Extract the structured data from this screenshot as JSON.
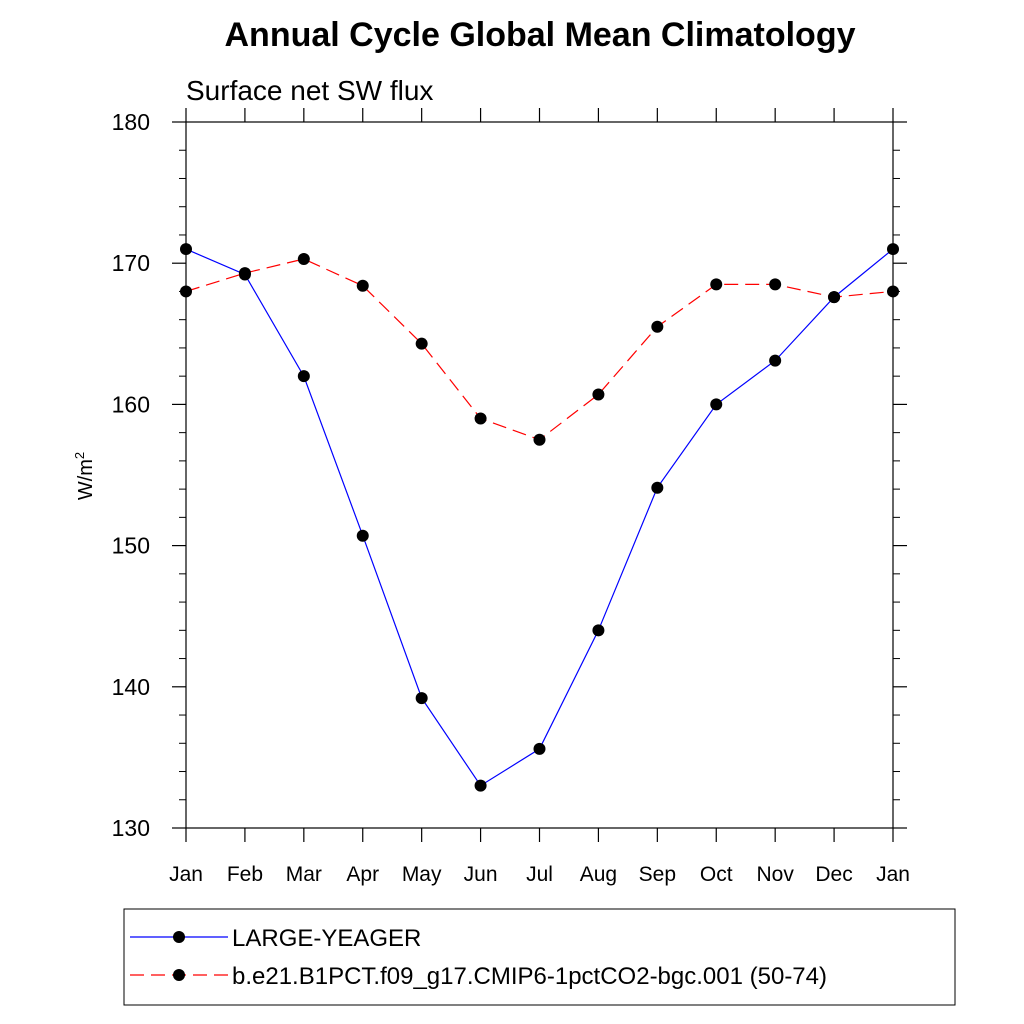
{
  "chart_data": {
    "type": "line",
    "title": "Annual Cycle Global Mean Climatology",
    "subtitle": "Surface net SW flux",
    "xlabel": "",
    "ylabel": "W/m",
    "ylabel_superscript": "2",
    "ylim": [
      130,
      180
    ],
    "yticks": [
      130,
      140,
      150,
      160,
      170,
      180
    ],
    "ytick_labels": [
      "130",
      "140",
      "150",
      "160",
      "170",
      "180"
    ],
    "categories": [
      "Jan",
      "Feb",
      "Mar",
      "Apr",
      "May",
      "Jun",
      "Jul",
      "Aug",
      "Sep",
      "Oct",
      "Nov",
      "Dec",
      "Jan"
    ],
    "grid": false,
    "legend_position": "bottom",
    "series": [
      {
        "name": "LARGE-YEAGER",
        "color": "#0000ff",
        "dash": "solid",
        "marker": "circle",
        "values": [
          171.0,
          169.2,
          162.0,
          150.7,
          139.2,
          133.0,
          135.6,
          144.0,
          154.1,
          160.0,
          163.1,
          167.6,
          171.0
        ]
      },
      {
        "name": "b.e21.B1PCT.f09_g17.CMIP6-1pctCO2-bgc.001 (50-74)",
        "color": "#ff0000",
        "dash": "dashed",
        "marker": "circle",
        "values": [
          168.0,
          169.3,
          170.3,
          168.4,
          164.3,
          159.0,
          157.5,
          160.7,
          165.5,
          168.5,
          168.5,
          167.6,
          168.0
        ]
      }
    ]
  }
}
